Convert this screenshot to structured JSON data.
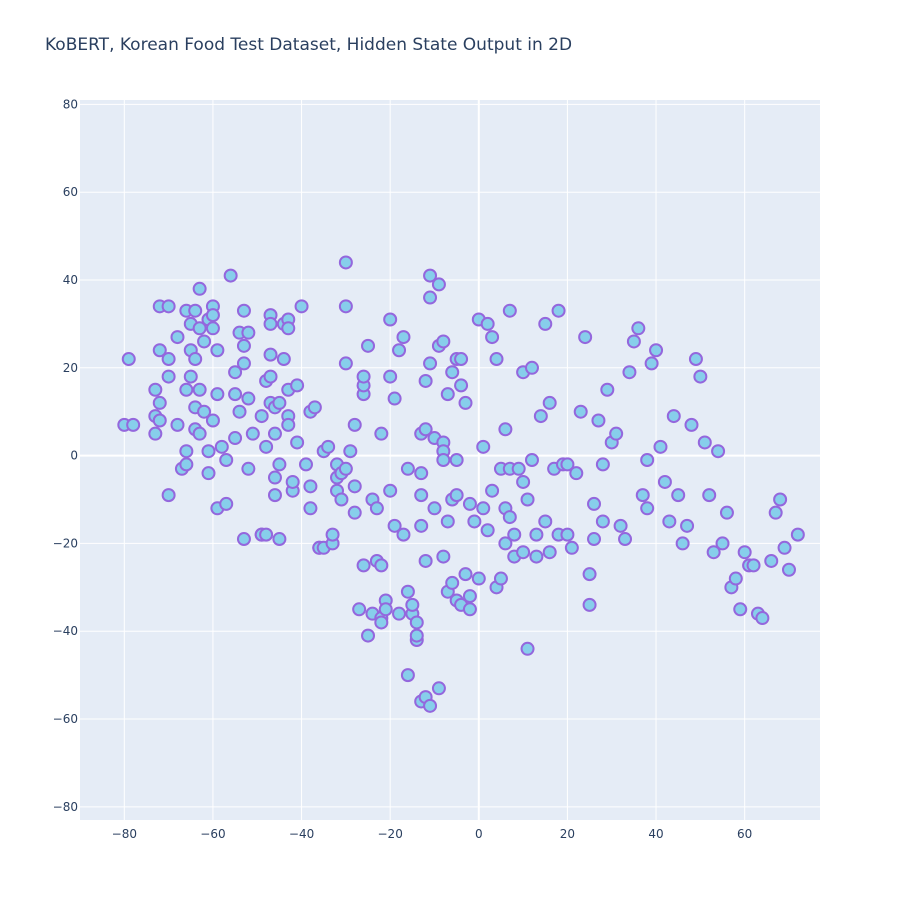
{
  "chart_data": {
    "type": "scatter",
    "title": "KoBERT, Korean Food Test Dataset, Hidden State Output in 2D",
    "xlabel": "",
    "ylabel": "",
    "xlim": [
      -90,
      77
    ],
    "ylim": [
      -83,
      81
    ],
    "xticks": [
      -80,
      -60,
      -40,
      -20,
      0,
      20,
      40,
      60
    ],
    "yticks": [
      -80,
      -60,
      -40,
      -20,
      0,
      20,
      40,
      60,
      80
    ],
    "grid": true,
    "marker_fill": "#87ceeb",
    "marker_edge": "#9467dd",
    "plot_background": "#e5ecf6",
    "series": [
      {
        "points": [
          [
            -79,
            22
          ],
          [
            -80,
            7
          ],
          [
            -78,
            7
          ],
          [
            -73,
            15
          ],
          [
            -72,
            12
          ],
          [
            -73,
            9
          ],
          [
            -72,
            8
          ],
          [
            -73,
            5
          ],
          [
            -72,
            24
          ],
          [
            -72,
            34
          ],
          [
            -70,
            34
          ],
          [
            -70,
            22
          ],
          [
            -70,
            18
          ],
          [
            -70,
            -9
          ],
          [
            -68,
            27
          ],
          [
            -68,
            7
          ],
          [
            -67,
            -3
          ],
          [
            -66,
            1
          ],
          [
            -66,
            -2
          ],
          [
            -66,
            15
          ],
          [
            -66,
            33
          ],
          [
            -65,
            24
          ],
          [
            -65,
            30
          ],
          [
            -65,
            18
          ],
          [
            -64,
            22
          ],
          [
            -64,
            33
          ],
          [
            -64,
            11
          ],
          [
            -64,
            6
          ],
          [
            -63,
            38
          ],
          [
            -63,
            29
          ],
          [
            -63,
            15
          ],
          [
            -63,
            5
          ],
          [
            -62,
            26
          ],
          [
            -62,
            10
          ],
          [
            -61,
            31
          ],
          [
            -61,
            1
          ],
          [
            -61,
            -4
          ],
          [
            -60,
            34
          ],
          [
            -60,
            29
          ],
          [
            -60,
            8
          ],
          [
            -60,
            32
          ],
          [
            -59,
            24
          ],
          [
            -59,
            -12
          ],
          [
            -59,
            14
          ],
          [
            -58,
            2
          ],
          [
            -57,
            -1
          ],
          [
            -57,
            -11
          ],
          [
            -56,
            41
          ],
          [
            -55,
            19
          ],
          [
            -55,
            14
          ],
          [
            -55,
            4
          ],
          [
            -54,
            28
          ],
          [
            -54,
            10
          ],
          [
            -53,
            -19
          ],
          [
            -53,
            21
          ],
          [
            -53,
            25
          ],
          [
            -53,
            33
          ],
          [
            -52,
            28
          ],
          [
            -52,
            13
          ],
          [
            -52,
            -3
          ],
          [
            -51,
            5
          ],
          [
            -49,
            -18
          ],
          [
            -49,
            -18
          ],
          [
            -49,
            9
          ],
          [
            -48,
            -18
          ],
          [
            -48,
            17
          ],
          [
            -48,
            2
          ],
          [
            -47,
            32
          ],
          [
            -47,
            30
          ],
          [
            -47,
            23
          ],
          [
            -47,
            18
          ],
          [
            -47,
            12
          ],
          [
            -46,
            -9
          ],
          [
            -46,
            -5
          ],
          [
            -46,
            5
          ],
          [
            -46,
            11
          ],
          [
            -45,
            -2
          ],
          [
            -45,
            -19
          ],
          [
            -45,
            12
          ],
          [
            -44,
            30
          ],
          [
            -44,
            22
          ],
          [
            -43,
            31
          ],
          [
            -43,
            29
          ],
          [
            -43,
            15
          ],
          [
            -43,
            9
          ],
          [
            -43,
            7
          ],
          [
            -42,
            -8
          ],
          [
            -42,
            -6
          ],
          [
            -41,
            3
          ],
          [
            -41,
            16
          ],
          [
            -40,
            34
          ],
          [
            -39,
            -2
          ],
          [
            -38,
            10
          ],
          [
            -38,
            -12
          ],
          [
            -38,
            -7
          ],
          [
            -37,
            11
          ],
          [
            -36,
            -21
          ],
          [
            -36,
            -21
          ],
          [
            -35,
            1
          ],
          [
            -35,
            -21
          ],
          [
            -34,
            2
          ],
          [
            -33,
            -20
          ],
          [
            -33,
            -18
          ],
          [
            -32,
            -8
          ],
          [
            -32,
            -5
          ],
          [
            -32,
            -2
          ],
          [
            -31,
            -4
          ],
          [
            -31,
            -10
          ],
          [
            -30,
            21
          ],
          [
            -30,
            44
          ],
          [
            -30,
            34
          ],
          [
            -30,
            -3
          ],
          [
            -29,
            1
          ],
          [
            -28,
            7
          ],
          [
            -28,
            -13
          ],
          [
            -28,
            -7
          ],
          [
            -27,
            -35
          ],
          [
            -26,
            -25
          ],
          [
            -26,
            14
          ],
          [
            -26,
            16
          ],
          [
            -26,
            18
          ],
          [
            -25,
            25
          ],
          [
            -25,
            -41
          ],
          [
            -24,
            -36
          ],
          [
            -24,
            -10
          ],
          [
            -23,
            -12
          ],
          [
            -23,
            -24
          ],
          [
            -22,
            -37
          ],
          [
            -22,
            -25
          ],
          [
            -22,
            -38
          ],
          [
            -22,
            5
          ],
          [
            -21,
            -33
          ],
          [
            -21,
            -35
          ],
          [
            -20,
            31
          ],
          [
            -20,
            -8
          ],
          [
            -20,
            18
          ],
          [
            -19,
            -16
          ],
          [
            -19,
            13
          ],
          [
            -18,
            24
          ],
          [
            -18,
            -36
          ],
          [
            -17,
            27
          ],
          [
            -17,
            -18
          ],
          [
            -16,
            -3
          ],
          [
            -16,
            -50
          ],
          [
            -16,
            -31
          ],
          [
            -15,
            -36
          ],
          [
            -15,
            -34
          ],
          [
            -14,
            -38
          ],
          [
            -14,
            -42
          ],
          [
            -14,
            -41
          ],
          [
            -13,
            -16
          ],
          [
            -13,
            -4
          ],
          [
            -13,
            -9
          ],
          [
            -13,
            5
          ],
          [
            -13,
            -56
          ],
          [
            -12,
            -55
          ],
          [
            -12,
            17
          ],
          [
            -12,
            -24
          ],
          [
            -12,
            6
          ],
          [
            -11,
            41
          ],
          [
            -11,
            36
          ],
          [
            -11,
            21
          ],
          [
            -11,
            -57
          ],
          [
            -10,
            -12
          ],
          [
            -10,
            4
          ],
          [
            -9,
            25
          ],
          [
            -9,
            -53
          ],
          [
            -9,
            39
          ],
          [
            -8,
            26
          ],
          [
            -8,
            3
          ],
          [
            -8,
            1
          ],
          [
            -8,
            -1
          ],
          [
            -8,
            -23
          ],
          [
            -7,
            14
          ],
          [
            -7,
            -31
          ],
          [
            -7,
            -15
          ],
          [
            -6,
            -29
          ],
          [
            -6,
            -10
          ],
          [
            -6,
            19
          ],
          [
            -5,
            22
          ],
          [
            -5,
            -33
          ],
          [
            -5,
            -9
          ],
          [
            -5,
            -1
          ],
          [
            -4,
            -34
          ],
          [
            -4,
            16
          ],
          [
            -4,
            22
          ],
          [
            -3,
            12
          ],
          [
            -3,
            -27
          ],
          [
            -2,
            -35
          ],
          [
            -2,
            -11
          ],
          [
            -2,
            -32
          ],
          [
            -1,
            -15
          ],
          [
            0,
            -28
          ],
          [
            0,
            31
          ],
          [
            1,
            2
          ],
          [
            1,
            -12
          ],
          [
            2,
            30
          ],
          [
            2,
            -17
          ],
          [
            3,
            27
          ],
          [
            3,
            -8
          ],
          [
            4,
            -30
          ],
          [
            4,
            22
          ],
          [
            5,
            -28
          ],
          [
            5,
            -3
          ],
          [
            6,
            -12
          ],
          [
            6,
            6
          ],
          [
            6,
            -20
          ],
          [
            7,
            -3
          ],
          [
            7,
            -14
          ],
          [
            7,
            33
          ],
          [
            8,
            -18
          ],
          [
            8,
            -23
          ],
          [
            9,
            -3
          ],
          [
            10,
            -6
          ],
          [
            10,
            -22
          ],
          [
            10,
            19
          ],
          [
            11,
            -44
          ],
          [
            11,
            -10
          ],
          [
            12,
            -1
          ],
          [
            12,
            20
          ],
          [
            13,
            -23
          ],
          [
            13,
            -18
          ],
          [
            14,
            9
          ],
          [
            15,
            30
          ],
          [
            15,
            -15
          ],
          [
            16,
            -22
          ],
          [
            16,
            12
          ],
          [
            17,
            -3
          ],
          [
            18,
            33
          ],
          [
            18,
            -18
          ],
          [
            19,
            -2
          ],
          [
            20,
            -18
          ],
          [
            20,
            -2
          ],
          [
            21,
            -21
          ],
          [
            22,
            -4
          ],
          [
            23,
            10
          ],
          [
            24,
            27
          ],
          [
            25,
            -27
          ],
          [
            25,
            -34
          ],
          [
            26,
            -11
          ],
          [
            26,
            -19
          ],
          [
            27,
            8
          ],
          [
            28,
            -15
          ],
          [
            28,
            -2
          ],
          [
            29,
            15
          ],
          [
            30,
            3
          ],
          [
            31,
            5
          ],
          [
            32,
            -16
          ],
          [
            33,
            -19
          ],
          [
            34,
            19
          ],
          [
            35,
            26
          ],
          [
            36,
            29
          ],
          [
            37,
            -9
          ],
          [
            38,
            -12
          ],
          [
            38,
            -1
          ],
          [
            39,
            21
          ],
          [
            40,
            24
          ],
          [
            41,
            2
          ],
          [
            42,
            -6
          ],
          [
            43,
            -15
          ],
          [
            44,
            9
          ],
          [
            45,
            -9
          ],
          [
            46,
            -20
          ],
          [
            47,
            -16
          ],
          [
            48,
            7
          ],
          [
            49,
            22
          ],
          [
            50,
            18
          ],
          [
            51,
            3
          ],
          [
            52,
            -9
          ],
          [
            53,
            -22
          ],
          [
            54,
            1
          ],
          [
            55,
            -20
          ],
          [
            56,
            -13
          ],
          [
            57,
            -30
          ],
          [
            58,
            -28
          ],
          [
            59,
            -35
          ],
          [
            60,
            -22
          ],
          [
            61,
            -25
          ],
          [
            62,
            -25
          ],
          [
            63,
            -36
          ],
          [
            64,
            -37
          ],
          [
            66,
            -24
          ],
          [
            67,
            -13
          ],
          [
            68,
            -10
          ],
          [
            69,
            -21
          ],
          [
            70,
            -26
          ],
          [
            72,
            -18
          ]
        ]
      }
    ]
  }
}
